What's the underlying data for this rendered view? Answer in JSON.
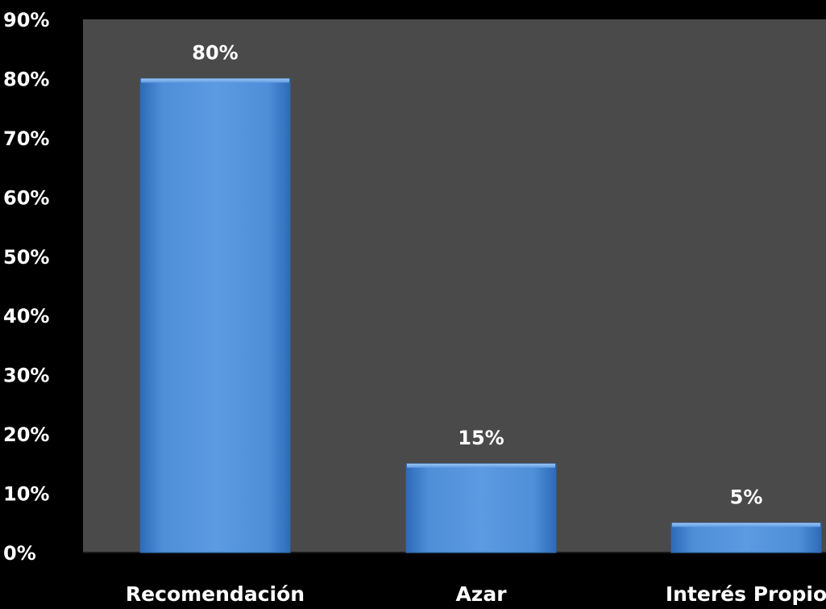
{
  "chart_data": {
    "type": "bar",
    "categories": [
      "Recomendación",
      "Azar",
      "Interés Propio"
    ],
    "values": [
      80,
      15,
      5
    ],
    "data_labels": [
      "80%",
      "15%",
      "5%"
    ],
    "ylim": [
      0,
      90
    ],
    "yticks": [
      "0%",
      "10%",
      "20%",
      "30%",
      "40%",
      "50%",
      "60%",
      "70%",
      "80%",
      "90%"
    ],
    "grid": false,
    "legend": "none",
    "colors": {
      "background": "#000000",
      "plot_area": "#4a4a4a",
      "bar": "#4f8fd8",
      "bar_edge": "#2f67b0",
      "text": "#ffffff"
    }
  }
}
